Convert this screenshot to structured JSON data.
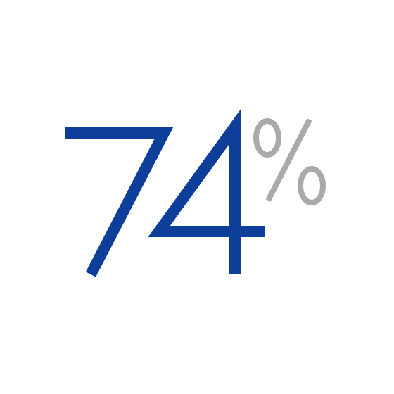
{
  "stat": {
    "value": "74",
    "unit": "%",
    "value_color": "#0D3F9A",
    "unit_color": "#AAAAAA"
  }
}
